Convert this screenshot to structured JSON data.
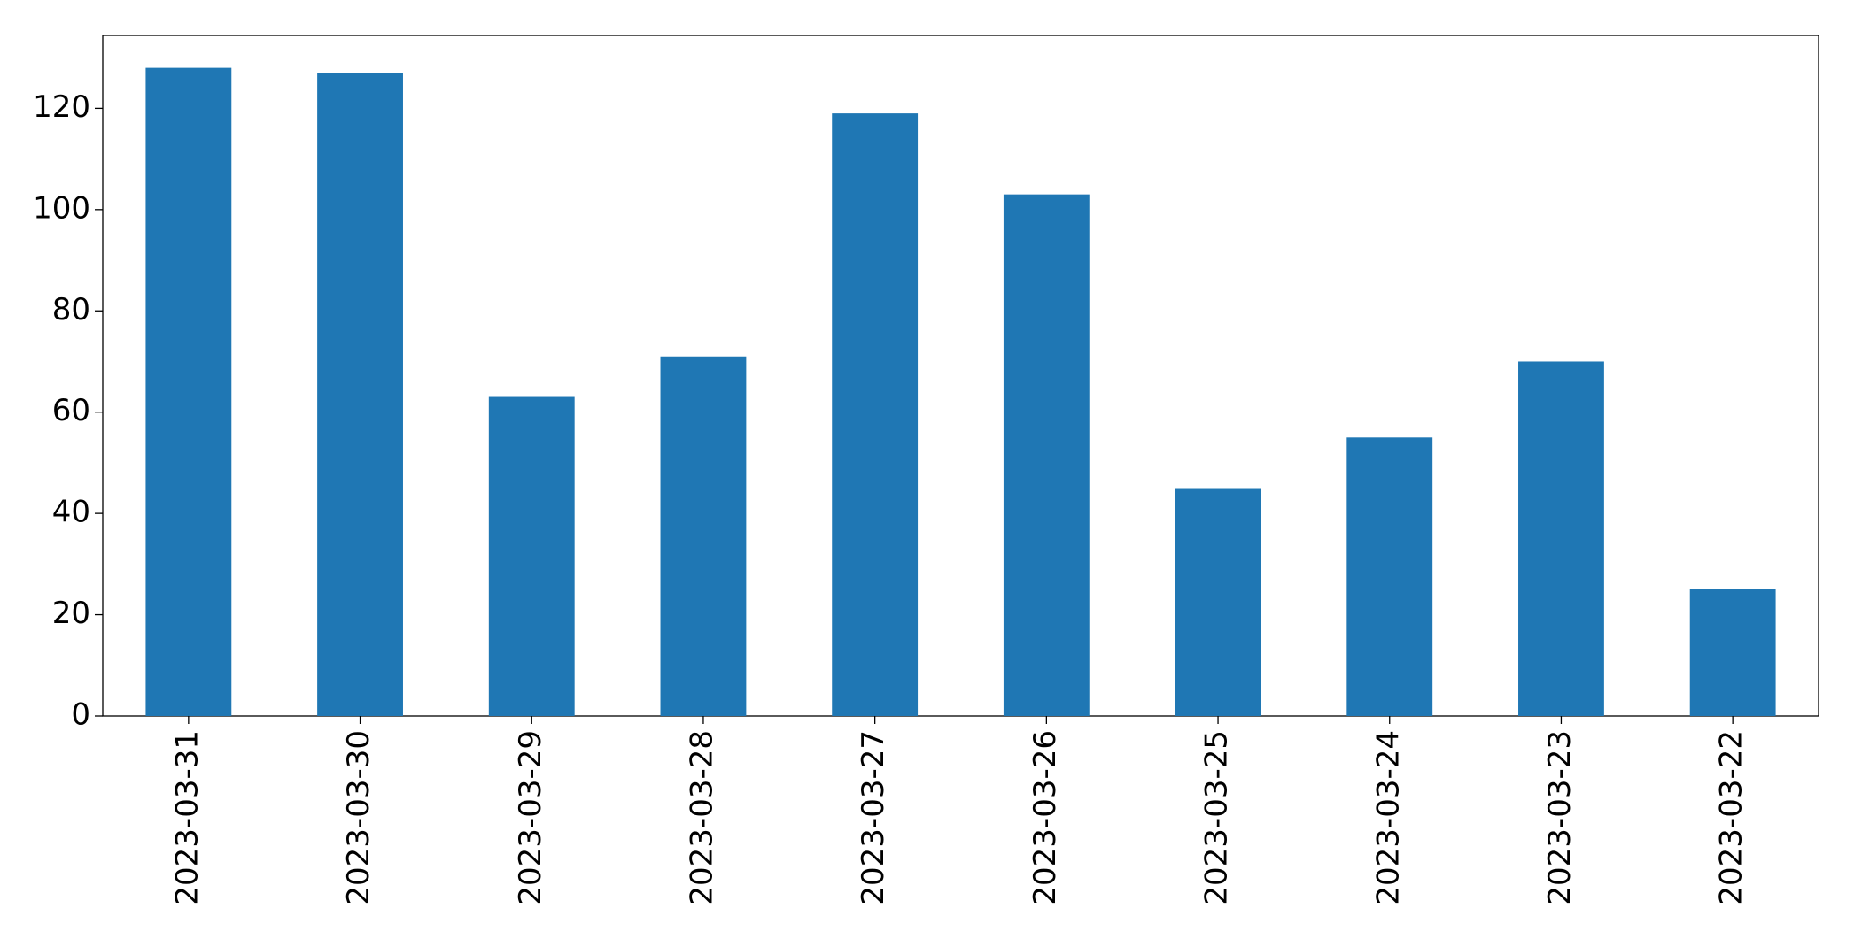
{
  "chart_data": {
    "type": "bar",
    "categories": [
      "2023-03-31",
      "2023-03-30",
      "2023-03-29",
      "2023-03-28",
      "2023-03-27",
      "2023-03-26",
      "2023-03-25",
      "2023-03-24",
      "2023-03-23",
      "2023-03-22"
    ],
    "values": [
      128,
      127,
      63,
      71,
      119,
      103,
      45,
      55,
      70,
      25
    ],
    "color": "#1f77b4",
    "ylim": [
      0,
      134.4
    ],
    "yticks": [
      0,
      20,
      40,
      60,
      80,
      100,
      120
    ],
    "grid": false
  }
}
